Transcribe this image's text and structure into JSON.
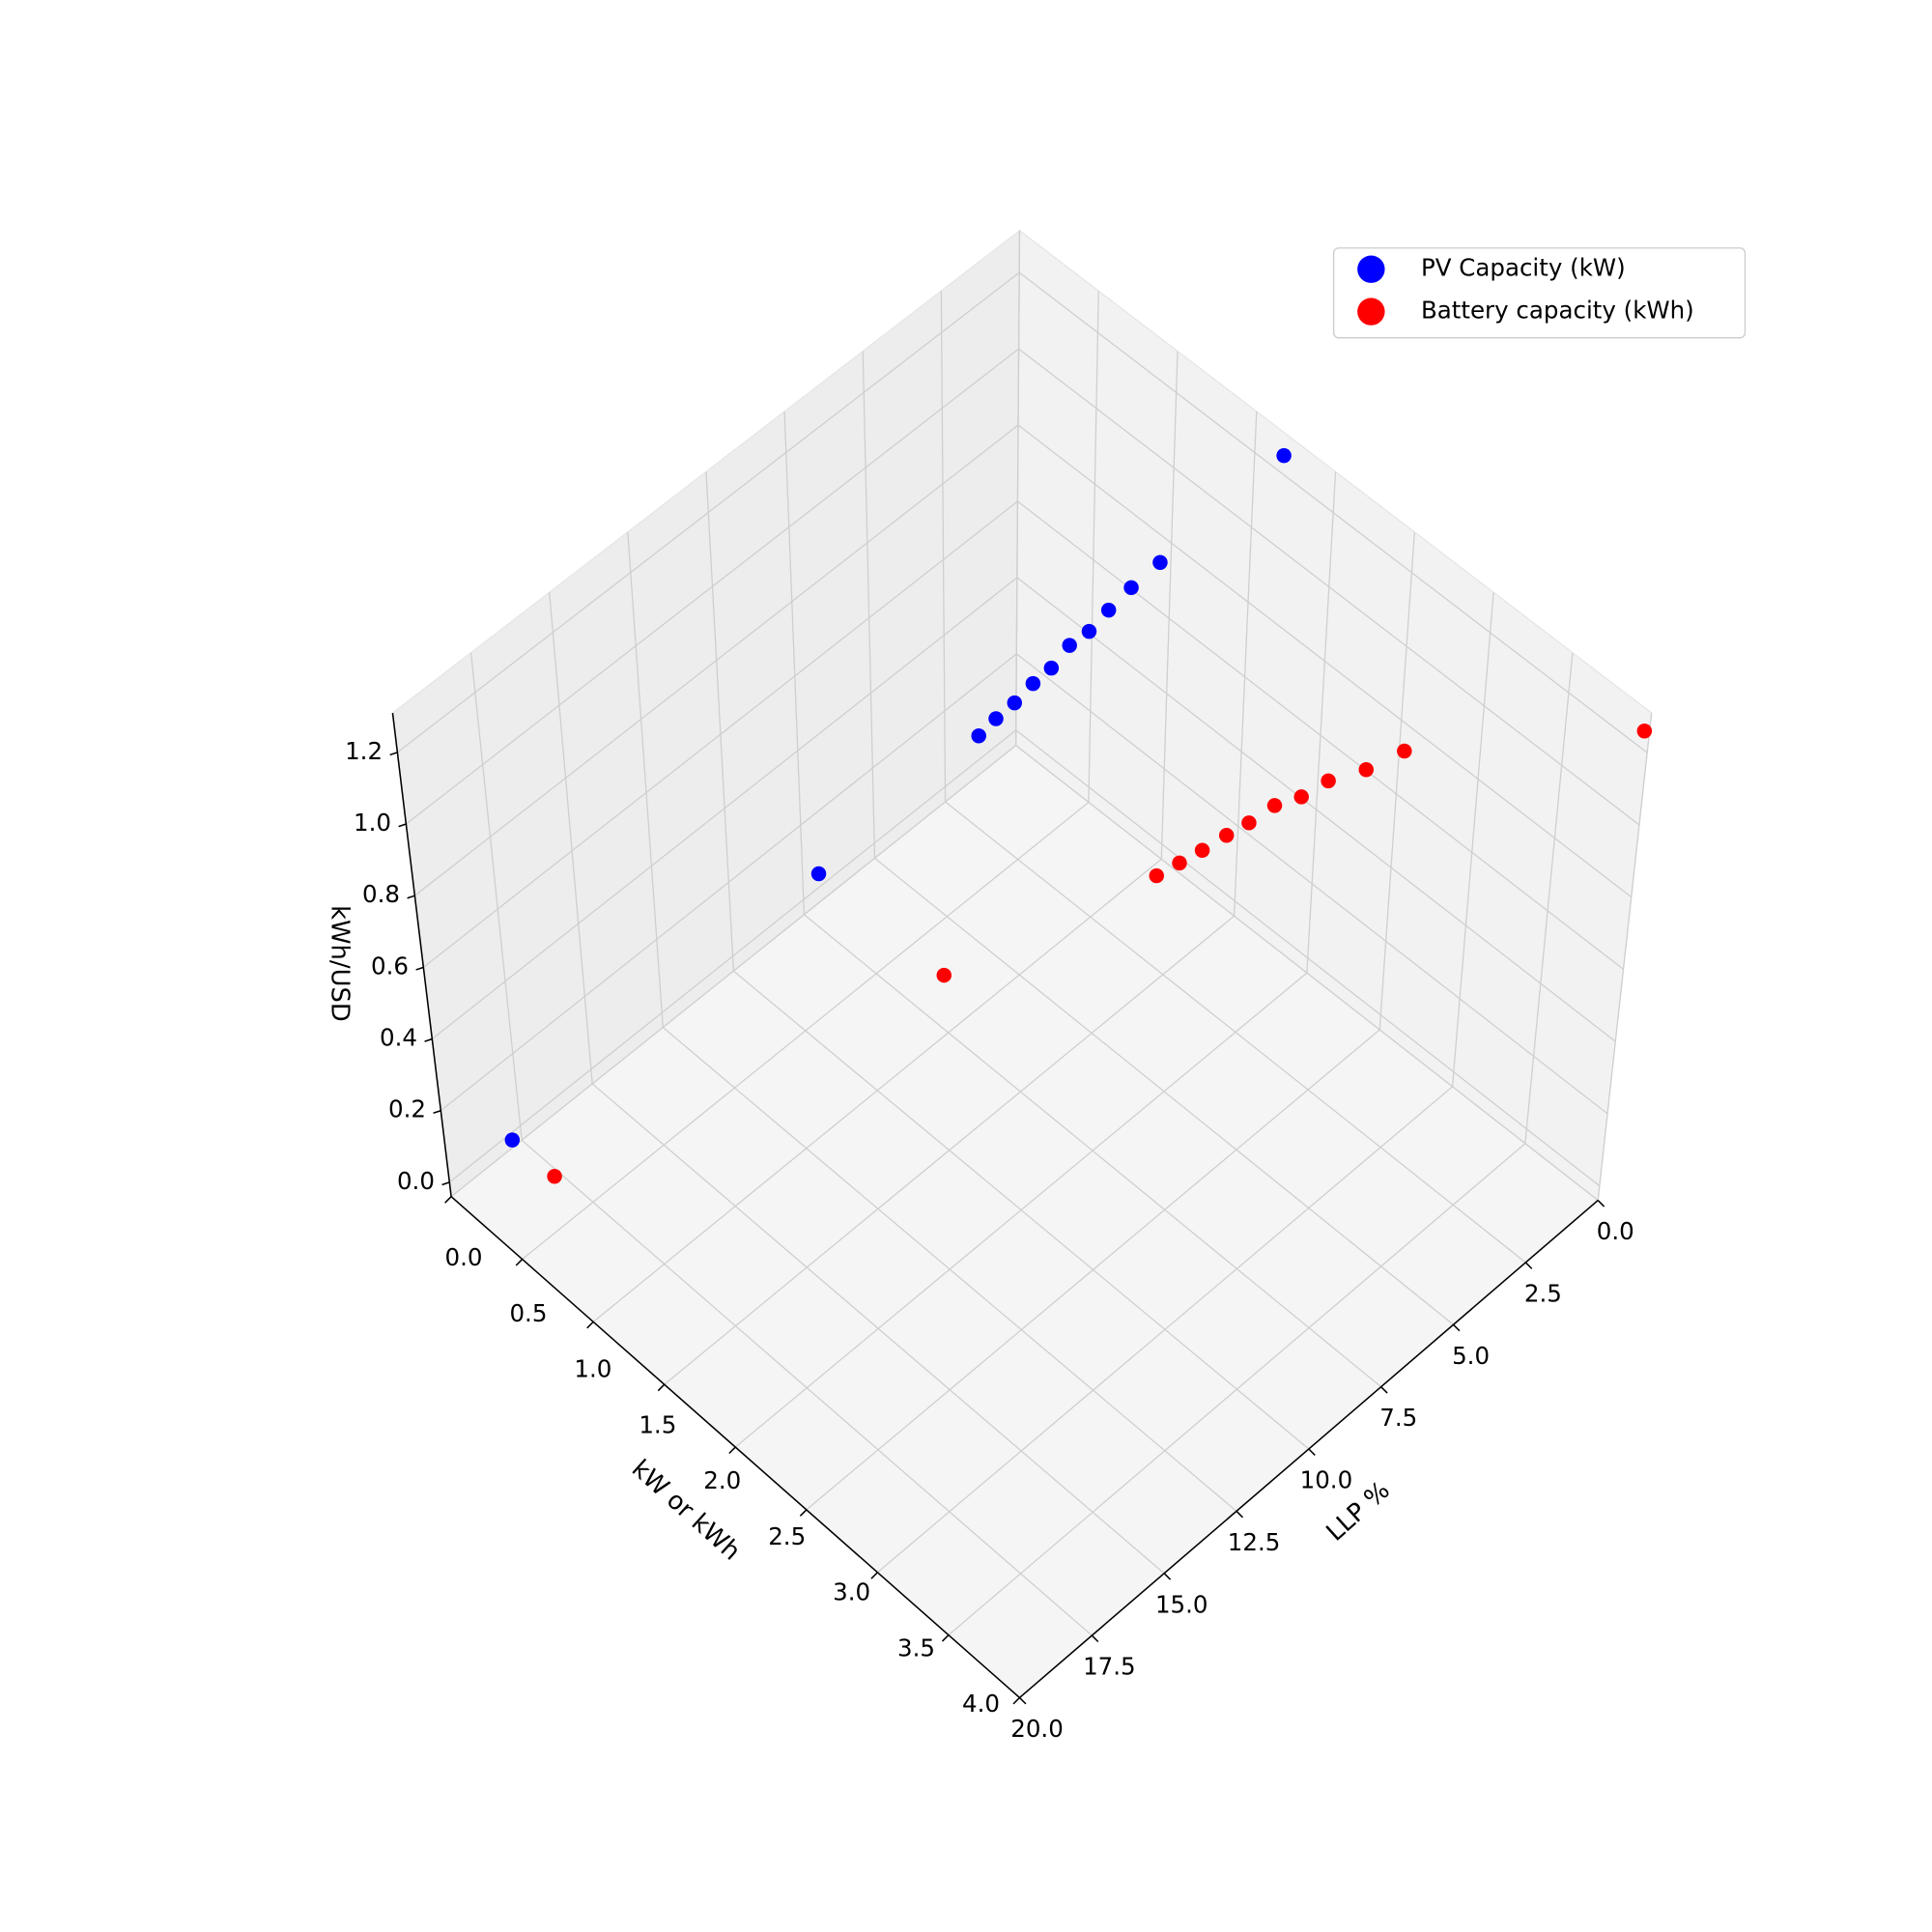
{
  "chart_data": {
    "type": "scatter3d",
    "xlabel": "LLP %",
    "ylabel": "kW or kWh",
    "zlabel": "kWh/USD",
    "xlim": [
      0,
      20
    ],
    "ylim": [
      0,
      4
    ],
    "zlim": [
      -0.04,
      1.31
    ],
    "xticks": [
      {
        "value": 0,
        "label": "0.0"
      },
      {
        "value": 2.5,
        "label": "2.5"
      },
      {
        "value": 5,
        "label": "5.0"
      },
      {
        "value": 7.5,
        "label": "7.5"
      },
      {
        "value": 10,
        "label": "10.0"
      },
      {
        "value": 12.5,
        "label": "12.5"
      },
      {
        "value": 15,
        "label": "15.0"
      },
      {
        "value": 17.5,
        "label": "17.5"
      },
      {
        "value": 20,
        "label": "20.0"
      }
    ],
    "yticks": [
      {
        "value": 0,
        "label": "0.0"
      },
      {
        "value": 0.5,
        "label": "0.5"
      },
      {
        "value": 1,
        "label": "1.0"
      },
      {
        "value": 1.5,
        "label": "1.5"
      },
      {
        "value": 2,
        "label": "2.0"
      },
      {
        "value": 2.5,
        "label": "2.5"
      },
      {
        "value": 3,
        "label": "3.0"
      },
      {
        "value": 3.5,
        "label": "3.5"
      },
      {
        "value": 4,
        "label": "4.0"
      }
    ],
    "zticks": [
      {
        "value": 0,
        "label": "0.0"
      },
      0.2,
      0.4,
      0.6,
      0.8,
      {
        "value": 1,
        "label": "1.0"
      },
      1.2
    ],
    "grid": true,
    "legend": "upper right",
    "series": [
      {
        "name": "PV Capacity (kW)",
        "color": "#0000ff",
        "x": [
          0,
          1,
          2,
          3,
          4,
          5,
          6,
          7,
          8,
          9,
          10,
          12,
          20
        ],
        "y": [
          1.68,
          1.12,
          1.13,
          1.18,
          1.25,
          1.32,
          1.4,
          1.48,
          1.56,
          1.64,
          1.73,
          1.06,
          0.52
        ],
        "z": [
          1.25,
          0.85,
          0.85,
          0.87,
          0.9,
          0.95,
          0.98,
          1.03,
          1.07,
          1.12,
          1.17,
          0.7,
          0.3
        ]
      },
      {
        "name": "Battery capacity (kWh)",
        "color": "#ff0000",
        "x": [
          0,
          1,
          2,
          3,
          4,
          5,
          6,
          7,
          8,
          9,
          10,
          12,
          20
        ],
        "y": [
          3.97,
          2.71,
          2.66,
          2.61,
          2.63,
          2.65,
          2.68,
          2.73,
          2.77,
          2.82,
          2.87,
          1.89,
          0.81
        ],
        "z": [
          1.25,
          0.85,
          0.85,
          0.87,
          0.9,
          0.95,
          0.98,
          1.03,
          1.07,
          1.12,
          1.17,
          0.7,
          0.3
        ]
      }
    ]
  }
}
